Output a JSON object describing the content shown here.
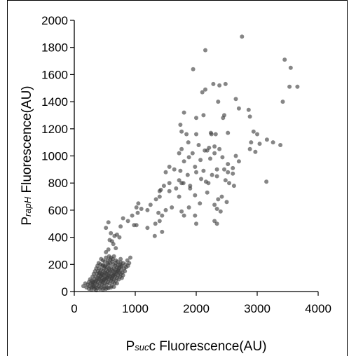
{
  "chart_data": {
    "type": "scatter",
    "xlabel_parts": [
      "P",
      "suc",
      "c Fluorescence(AU)"
    ],
    "ylabel_parts": [
      "P",
      "rapH",
      " Fluorescence(AU)"
    ],
    "xlim": [
      0,
      4000
    ],
    "ylim": [
      0,
      2000
    ],
    "x_ticks": [
      "0",
      "1000",
      "2000",
      "3000",
      "4000"
    ],
    "y_ticks": [
      "0",
      "200",
      "400",
      "600",
      "800",
      "1000",
      "1200",
      "1400",
      "1600",
      "1800",
      "2000"
    ],
    "x_tick_values": [
      0,
      1000,
      2000,
      3000,
      4000
    ],
    "y_tick_values": [
      0,
      200,
      400,
      600,
      800,
      1000,
      1200,
      1400,
      1600,
      1800,
      2000
    ],
    "marker_color": "#3c3c3c",
    "grid": false,
    "series": [
      {
        "points": [
          [
            2750,
            1880
          ],
          [
            2150,
            1780
          ],
          [
            1950,
            1640
          ],
          [
            3450,
            1710
          ],
          [
            3550,
            1650
          ],
          [
            3530,
            1510
          ],
          [
            3660,
            1510
          ],
          [
            3420,
            1400
          ],
          [
            2100,
            1470
          ],
          [
            2150,
            1490
          ],
          [
            2280,
            1530
          ],
          [
            2380,
            1520
          ],
          [
            2480,
            1530
          ],
          [
            2650,
            1420
          ],
          [
            2360,
            1400
          ],
          [
            2700,
            1350
          ],
          [
            2860,
            1340
          ],
          [
            2880,
            1290
          ],
          [
            1800,
            1320
          ],
          [
            2000,
            1280
          ],
          [
            2120,
            1300
          ],
          [
            2460,
            1300
          ],
          [
            2440,
            1280
          ],
          [
            1740,
            1230
          ],
          [
            1760,
            1180
          ],
          [
            1840,
            1160
          ],
          [
            2000,
            1160
          ],
          [
            2240,
            1170
          ],
          [
            2250,
            1160
          ],
          [
            2320,
            1160
          ],
          [
            2520,
            1170
          ],
          [
            2940,
            1180
          ],
          [
            3000,
            1160
          ],
          [
            3040,
            1090
          ],
          [
            3160,
            1120
          ],
          [
            3260,
            1100
          ],
          [
            3380,
            1080
          ],
          [
            2900,
            1100
          ],
          [
            2880,
            1050
          ],
          [
            2970,
            1030
          ],
          [
            2040,
            1080
          ],
          [
            2140,
            1040
          ],
          [
            2180,
            1040
          ],
          [
            2300,
            1070
          ],
          [
            2380,
            1050
          ],
          [
            1760,
            1050
          ],
          [
            1870,
            1100
          ],
          [
            1940,
            1020
          ],
          [
            2070,
            970
          ],
          [
            2230,
            980
          ],
          [
            2430,
            990
          ],
          [
            2650,
            1000
          ],
          [
            2700,
            960
          ],
          [
            2520,
            940
          ],
          [
            1800,
            960
          ],
          [
            1980,
            920
          ],
          [
            2120,
            890
          ],
          [
            2460,
            900
          ],
          [
            2520,
            880
          ],
          [
            2600,
            870
          ],
          [
            1500,
            880
          ],
          [
            1560,
            920
          ],
          [
            1640,
            900
          ],
          [
            1740,
            890
          ],
          [
            1860,
            860
          ],
          [
            2000,
            880
          ],
          [
            2260,
            860
          ],
          [
            2340,
            850
          ],
          [
            2480,
            820
          ],
          [
            2540,
            800
          ],
          [
            2620,
            780
          ],
          [
            1720,
            820
          ],
          [
            1760,
            800
          ],
          [
            1790,
            800
          ],
          [
            1900,
            780
          ],
          [
            2080,
            830
          ],
          [
            2160,
            810
          ],
          [
            2200,
            800
          ],
          [
            1470,
            780
          ],
          [
            1560,
            800
          ],
          [
            1420,
            750
          ],
          [
            1400,
            740
          ],
          [
            1560,
            740
          ],
          [
            1670,
            760
          ],
          [
            1900,
            760
          ],
          [
            2180,
            730
          ],
          [
            2420,
            700
          ],
          [
            2500,
            660
          ],
          [
            2360,
            680
          ],
          [
            3150,
            810
          ],
          [
            1340,
            680
          ],
          [
            1400,
            700
          ],
          [
            1720,
            700
          ],
          [
            1980,
            710
          ],
          [
            2060,
            650
          ],
          [
            2300,
            640
          ],
          [
            2340,
            610
          ],
          [
            2400,
            590
          ],
          [
            2300,
            520
          ],
          [
            2340,
            500
          ],
          [
            2000,
            500
          ],
          [
            1980,
            560
          ],
          [
            1800,
            560
          ],
          [
            1760,
            590
          ],
          [
            1880,
            620
          ],
          [
            1600,
            620
          ],
          [
            1500,
            600
          ],
          [
            1380,
            580
          ],
          [
            1250,
            640
          ],
          [
            1200,
            600
          ],
          [
            1100,
            610
          ],
          [
            1050,
            650
          ],
          [
            1020,
            620
          ],
          [
            950,
            560
          ],
          [
            880,
            520
          ],
          [
            1040,
            580
          ],
          [
            1400,
            520
          ],
          [
            1440,
            560
          ],
          [
            1330,
            500
          ],
          [
            1200,
            470
          ],
          [
            1320,
            410
          ],
          [
            1440,
            440
          ],
          [
            980,
            490
          ],
          [
            1020,
            490
          ],
          [
            560,
            510
          ],
          [
            520,
            470
          ],
          [
            800,
            540
          ],
          [
            760,
            480
          ],
          [
            700,
            420
          ],
          [
            600,
            430
          ],
          [
            660,
            410
          ],
          [
            740,
            400
          ],
          [
            580,
            380
          ],
          [
            620,
            370
          ],
          [
            640,
            350
          ],
          [
            680,
            320
          ],
          [
            560,
            310
          ],
          [
            520,
            290
          ],
          [
            1880,
            990
          ],
          [
            2210,
            1060
          ],
          [
            2300,
            1020
          ],
          [
            2340,
            900
          ],
          [
            2600,
            910
          ],
          [
            1720,
            1020
          ],
          [
            150,
            40
          ],
          [
            180,
            60
          ],
          [
            200,
            30
          ],
          [
            220,
            50
          ],
          [
            240,
            70
          ],
          [
            250,
            40
          ],
          [
            260,
            90
          ],
          [
            270,
            60
          ],
          [
            280,
            30
          ],
          [
            290,
            80
          ],
          [
            300,
            50
          ],
          [
            300,
            110
          ],
          [
            310,
            70
          ],
          [
            320,
            40
          ],
          [
            320,
            130
          ],
          [
            330,
            90
          ],
          [
            340,
            60
          ],
          [
            340,
            150
          ],
          [
            350,
            110
          ],
          [
            350,
            30
          ],
          [
            360,
            80
          ],
          [
            360,
            170
          ],
          [
            370,
            50
          ],
          [
            370,
            130
          ],
          [
            380,
            100
          ],
          [
            380,
            190
          ],
          [
            390,
            70
          ],
          [
            390,
            150
          ],
          [
            400,
            40
          ],
          [
            400,
            120
          ],
          [
            400,
            210
          ],
          [
            410,
            90
          ],
          [
            410,
            170
          ],
          [
            420,
            60
          ],
          [
            420,
            140
          ],
          [
            430,
            110
          ],
          [
            430,
            200
          ],
          [
            440,
            80
          ],
          [
            440,
            160
          ],
          [
            440,
            240
          ],
          [
            450,
            50
          ],
          [
            450,
            130
          ],
          [
            460,
            100
          ],
          [
            460,
            190
          ],
          [
            470,
            70
          ],
          [
            470,
            150
          ],
          [
            470,
            230
          ],
          [
            480,
            120
          ],
          [
            480,
            40
          ],
          [
            490,
            90
          ],
          [
            490,
            170
          ],
          [
            500,
            60
          ],
          [
            500,
            140
          ],
          [
            500,
            220
          ],
          [
            510,
            110
          ],
          [
            510,
            190
          ],
          [
            520,
            80
          ],
          [
            520,
            160
          ],
          [
            520,
            250
          ],
          [
            530,
            130
          ],
          [
            530,
            50
          ],
          [
            540,
            100
          ],
          [
            540,
            180
          ],
          [
            550,
            70
          ],
          [
            550,
            150
          ],
          [
            550,
            230
          ],
          [
            560,
            120
          ],
          [
            560,
            200
          ],
          [
            570,
            90
          ],
          [
            570,
            170
          ],
          [
            570,
            260
          ],
          [
            580,
            60
          ],
          [
            580,
            140
          ],
          [
            590,
            110
          ],
          [
            590,
            210
          ],
          [
            600,
            80
          ],
          [
            600,
            180
          ],
          [
            600,
            250
          ],
          [
            610,
            130
          ],
          [
            610,
            40
          ],
          [
            620,
            100
          ],
          [
            620,
            160
          ],
          [
            620,
            220
          ],
          [
            630,
            70
          ],
          [
            630,
            150
          ],
          [
            640,
            120
          ],
          [
            640,
            200
          ],
          [
            650,
            90
          ],
          [
            650,
            170
          ],
          [
            650,
            260
          ],
          [
            660,
            140
          ],
          [
            660,
            60
          ],
          [
            670,
            110
          ],
          [
            670,
            190
          ],
          [
            680,
            80
          ],
          [
            680,
            160
          ],
          [
            680,
            230
          ],
          [
            690,
            130
          ],
          [
            700,
            100
          ],
          [
            700,
            180
          ],
          [
            700,
            60
          ],
          [
            710,
            150
          ],
          [
            710,
            220
          ],
          [
            720,
            120
          ],
          [
            730,
            90
          ],
          [
            730,
            170
          ],
          [
            740,
            140
          ],
          [
            750,
            110
          ],
          [
            750,
            200
          ],
          [
            760,
            130
          ],
          [
            760,
            240
          ],
          [
            770,
            160
          ],
          [
            780,
            100
          ],
          [
            780,
            190
          ],
          [
            790,
            140
          ],
          [
            800,
            120
          ],
          [
            800,
            210
          ],
          [
            820,
            170
          ],
          [
            830,
            150
          ],
          [
            840,
            200
          ],
          [
            850,
            180
          ],
          [
            870,
            230
          ],
          [
            880,
            190
          ],
          [
            900,
            210
          ],
          [
            920,
            250
          ],
          [
            240,
            20
          ],
          [
            280,
            15
          ],
          [
            330,
            20
          ],
          [
            360,
            10
          ],
          [
            420,
            20
          ],
          [
            470,
            15
          ],
          [
            520,
            20
          ],
          [
            560,
            25
          ],
          [
            310,
            35
          ],
          [
            370,
            25
          ],
          [
            430,
            30
          ],
          [
            490,
            25
          ],
          [
            540,
            30
          ],
          [
            600,
            30
          ],
          [
            650,
            35
          ],
          [
            450,
            75
          ],
          [
            480,
            85
          ],
          [
            510,
            95
          ],
          [
            540,
            105
          ],
          [
            570,
            115
          ],
          [
            610,
            95
          ],
          [
            630,
            115
          ],
          [
            660,
            125
          ],
          [
            690,
            145
          ],
          [
            720,
            155
          ],
          [
            740,
            175
          ],
          [
            770,
            185
          ],
          [
            580,
            155
          ],
          [
            520,
            135
          ],
          [
            460,
            125
          ],
          [
            400,
            95
          ],
          [
            350,
            75
          ],
          [
            300,
            65
          ],
          [
            410,
            135
          ],
          [
            440,
            115
          ],
          [
            500,
            185
          ],
          [
            470,
            195
          ],
          [
            550,
            210
          ],
          [
            590,
            235
          ],
          [
            630,
            240
          ],
          [
            680,
            210
          ],
          [
            720,
            195
          ],
          [
            760,
            215
          ]
        ]
      }
    ]
  }
}
